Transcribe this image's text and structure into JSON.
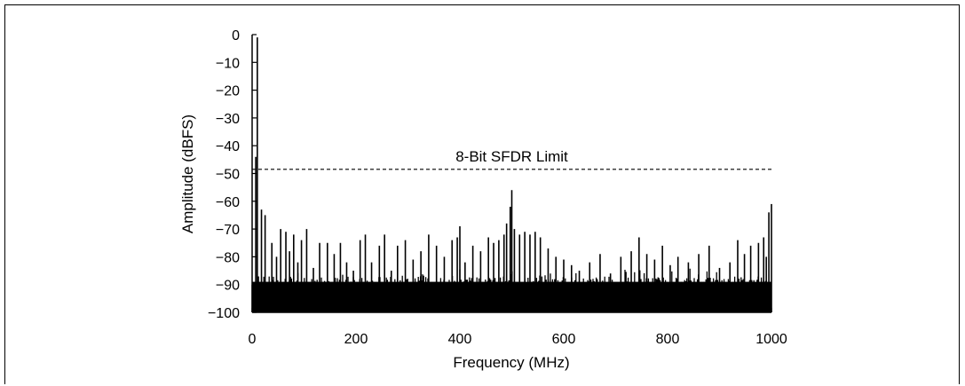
{
  "chart_data": {
    "type": "bar",
    "xlabel": "Frequency (MHz)",
    "ylabel": "Amplitude (dBFS)",
    "xlim": [
      0,
      1000
    ],
    "ylim": [
      -100,
      0
    ],
    "x_ticks": [
      "0",
      "200",
      "400",
      "600",
      "800",
      "1000"
    ],
    "y_ticks": [
      "0",
      "−10",
      "−20",
      "−30",
      "−40",
      "−50",
      "−60",
      "−70",
      "−80",
      "−90",
      "−100"
    ],
    "x_tick_values": [
      0,
      200,
      400,
      600,
      800,
      1000
    ],
    "y_tick_values": [
      0,
      -10,
      -20,
      -30,
      -40,
      -50,
      -60,
      -70,
      -80,
      -90,
      -100
    ],
    "grid": false,
    "noise_floor_dbfs": -90,
    "series": [
      {
        "x": [
          10,
          7,
          18,
          25,
          38,
          47,
          55,
          65,
          72,
          80,
          88,
          95,
          105,
          118,
          130,
          145,
          158,
          170,
          182,
          195,
          208,
          218,
          230,
          245,
          255,
          268,
          280,
          295,
          310,
          325,
          340,
          355,
          370,
          385,
          395,
          400,
          410,
          425,
          440,
          455,
          465,
          475,
          485,
          490,
          497,
          500,
          505,
          515,
          525,
          535,
          545,
          555,
          570,
          585,
          600,
          615,
          630,
          650,
          670,
          690,
          710,
          730,
          745,
          760,
          775,
          790,
          805,
          820,
          840,
          860,
          880,
          900,
          920,
          935,
          948,
          960,
          975,
          985,
          990,
          995,
          1000
        ],
        "y": [
          -1,
          -44,
          -63,
          -65,
          -75,
          -80,
          -70,
          -71,
          -78,
          -72,
          -82,
          -74,
          -70,
          -84,
          -75,
          -75,
          -79,
          -75,
          -82,
          -85,
          -74,
          -72,
          -82,
          -76,
          -72,
          -85,
          -76,
          -74,
          -81,
          -78,
          -72,
          -76,
          -80,
          -74,
          -73,
          -69,
          -82,
          -76,
          -78,
          -73,
          -75,
          -74,
          -72,
          -68,
          -62,
          -56,
          -70,
          -72,
          -71,
          -72,
          -71,
          -73,
          -77,
          -80,
          -81,
          -83,
          -85,
          -82,
          -79,
          -86,
          -80,
          -78,
          -73,
          -79,
          -81,
          -76,
          -83,
          -80,
          -82,
          -79,
          -76,
          -84,
          -82,
          -74,
          -79,
          -76,
          -75,
          -73,
          -80,
          -64,
          -61
        ]
      }
    ],
    "annotations": [
      {
        "text": "8-Bit SFDR Limit",
        "y": -48.5
      }
    ]
  }
}
